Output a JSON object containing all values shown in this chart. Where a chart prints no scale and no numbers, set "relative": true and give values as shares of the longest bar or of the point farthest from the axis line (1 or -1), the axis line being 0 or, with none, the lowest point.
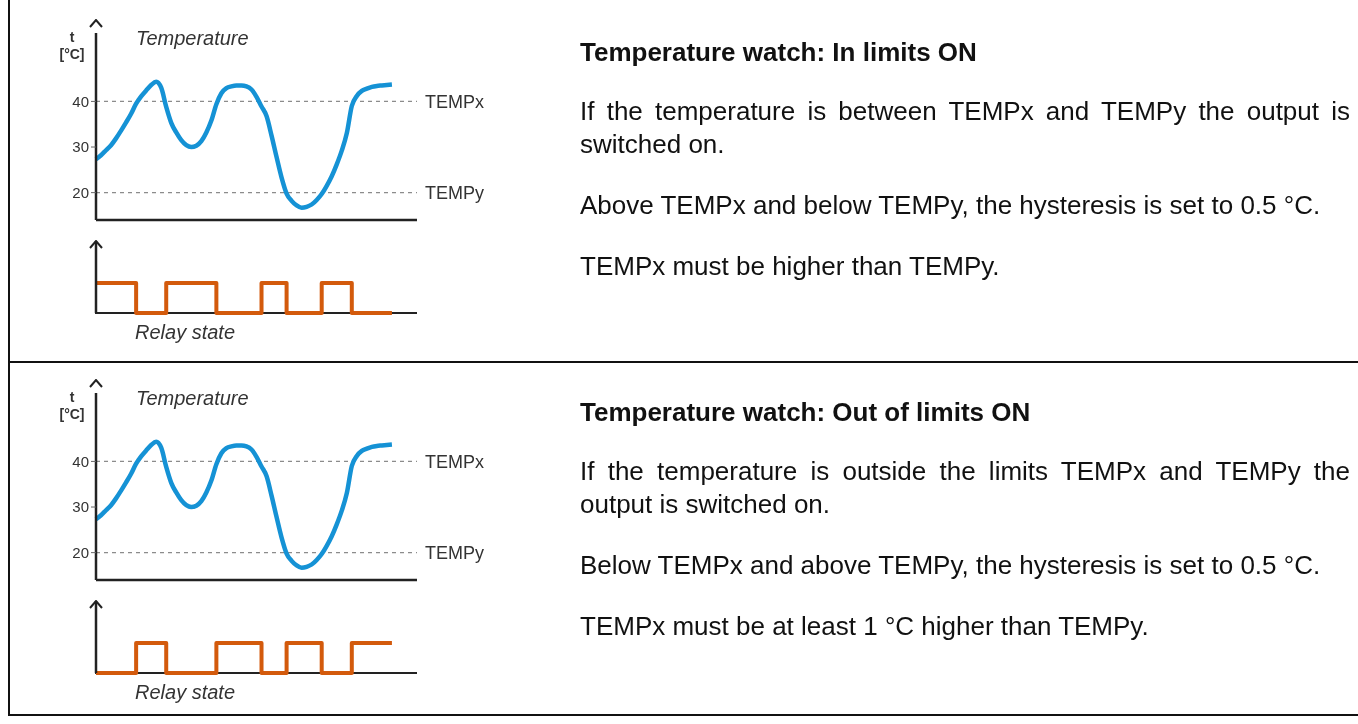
{
  "chart_data": [
    {
      "type": "line",
      "title": "Temperature",
      "ylabel": "t [°C]",
      "categories": [
        null,
        null,
        null,
        null,
        null,
        null,
        null,
        null,
        null,
        null,
        null,
        null,
        null,
        null,
        null,
        null,
        null,
        null,
        null,
        null,
        null,
        null,
        null,
        null,
        null,
        null,
        null,
        null,
        null,
        null,
        null,
        null,
        null,
        null,
        null,
        null,
        null,
        null,
        null,
        null,
        null,
        null,
        null,
        null,
        null,
        null,
        null,
        null,
        null,
        null,
        null,
        null,
        null,
        null,
        null,
        null,
        null,
        null,
        null,
        null
      ],
      "values": [
        27.3,
        28.2,
        29.3,
        30.4,
        31.9,
        33.6,
        35.4,
        37.3,
        39.5,
        41.1,
        42.4,
        43.6,
        44.3,
        43.0,
        38.8,
        35.3,
        33.2,
        31.5,
        30.4,
        30.0,
        30.3,
        31.3,
        33.2,
        35.8,
        39.4,
        41.8,
        42.9,
        43.3,
        43.5,
        43.5,
        43.3,
        42.6,
        41.0,
        38.9,
        36.8,
        32.5,
        27.8,
        23.3,
        19.8,
        18.2,
        17.2,
        16.7,
        16.9,
        17.4,
        18.4,
        19.7,
        21.5,
        23.6,
        26.2,
        29.2,
        33.0,
        39.0,
        41.2,
        42.3,
        42.8,
        43.2,
        43.4,
        43.5,
        43.6,
        43.7
      ],
      "color": "#1592d5",
      "line_style": "solid",
      "ylim": [
        14,
        55
      ],
      "yticks": [
        20,
        30,
        40
      ],
      "ref_lines": [
        {
          "axis": "y",
          "value": 40,
          "label": "TEMPx",
          "color": "#8c8c8c",
          "line_style": "dashed"
        },
        {
          "axis": "y",
          "value": 20,
          "label": "TEMPy",
          "color": "#8c8c8c",
          "line_style": "dashed"
        }
      ]
    },
    {
      "type": "step",
      "relative": true,
      "xlabel": "Relay state",
      "categories": [
        null,
        null,
        null,
        null,
        null,
        null,
        null,
        null,
        null,
        null,
        null,
        null,
        null,
        null,
        null,
        null,
        null,
        null,
        null,
        null,
        null,
        null,
        null,
        null,
        null,
        null,
        null,
        null,
        null,
        null,
        null,
        null,
        null,
        null,
        null,
        null,
        null,
        null,
        null,
        null,
        null,
        null,
        null,
        null,
        null,
        null,
        null,
        null,
        null,
        null,
        null,
        null,
        null,
        null,
        null,
        null,
        null,
        null,
        null,
        null
      ],
      "values": [
        1,
        1,
        1,
        1,
        1,
        1,
        1,
        1,
        0,
        0,
        0,
        0,
        0,
        0,
        1,
        1,
        1,
        1,
        1,
        1,
        1,
        1,
        1,
        1,
        0,
        0,
        0,
        0,
        0,
        0,
        0,
        0,
        0,
        1,
        1,
        1,
        1,
        1,
        0,
        0,
        0,
        0,
        0,
        0,
        0,
        1,
        1,
        1,
        1,
        1,
        1,
        0,
        0,
        0,
        0,
        0,
        0,
        0,
        0,
        0
      ],
      "color": "#d35a0c",
      "line_style": "solid"
    },
    {
      "type": "other",
      "title": "Temperature watch: In limits ON",
      "annotations": [
        "If the temperature is between TEMPx and TEMPy the output is switched on.",
        "Above TEMPx and below TEMPy, the hysteresis is set to 0.5 °C.",
        "TEMPx must be higher than TEMPy."
      ]
    },
    {
      "type": "line",
      "title": "Temperature",
      "ylabel": "t [°C]",
      "categories": [
        null,
        null,
        null,
        null,
        null,
        null,
        null,
        null,
        null,
        null,
        null,
        null,
        null,
        null,
        null,
        null,
        null,
        null,
        null,
        null,
        null,
        null,
        null,
        null,
        null,
        null,
        null,
        null,
        null,
        null,
        null,
        null,
        null,
        null,
        null,
        null,
        null,
        null,
        null,
        null,
        null,
        null,
        null,
        null,
        null,
        null,
        null,
        null,
        null,
        null,
        null,
        null,
        null,
        null,
        null,
        null,
        null,
        null,
        null,
        null
      ],
      "values": [
        27.3,
        28.2,
        29.3,
        30.4,
        31.9,
        33.6,
        35.4,
        37.3,
        39.5,
        41.1,
        42.4,
        43.6,
        44.3,
        43.0,
        38.8,
        35.3,
        33.2,
        31.5,
        30.4,
        30.0,
        30.3,
        31.3,
        33.2,
        35.8,
        39.4,
        41.8,
        42.9,
        43.3,
        43.5,
        43.5,
        43.3,
        42.6,
        41.0,
        38.9,
        36.8,
        32.5,
        27.8,
        23.3,
        19.8,
        18.2,
        17.2,
        16.7,
        16.9,
        17.4,
        18.4,
        19.7,
        21.5,
        23.6,
        26.2,
        29.2,
        33.0,
        39.0,
        41.2,
        42.3,
        42.8,
        43.2,
        43.4,
        43.5,
        43.6,
        43.7
      ],
      "color": "#1592d5",
      "line_style": "solid",
      "ylim": [
        14,
        55
      ],
      "yticks": [
        20,
        30,
        40
      ],
      "ref_lines": [
        {
          "axis": "y",
          "value": 40,
          "label": "TEMPx",
          "color": "#8c8c8c",
          "line_style": "dashed"
        },
        {
          "axis": "y",
          "value": 20,
          "label": "TEMPy",
          "color": "#8c8c8c",
          "line_style": "dashed"
        }
      ]
    },
    {
      "type": "step",
      "relative": true,
      "xlabel": "Relay state",
      "categories": [
        null,
        null,
        null,
        null,
        null,
        null,
        null,
        null,
        null,
        null,
        null,
        null,
        null,
        null,
        null,
        null,
        null,
        null,
        null,
        null,
        null,
        null,
        null,
        null,
        null,
        null,
        null,
        null,
        null,
        null,
        null,
        null,
        null,
        null,
        null,
        null,
        null,
        null,
        null,
        null,
        null,
        null,
        null,
        null,
        null,
        null,
        null,
        null,
        null,
        null,
        null,
        null,
        null,
        null,
        null,
        null,
        null,
        null,
        null,
        null
      ],
      "values": [
        0,
        0,
        0,
        0,
        0,
        0,
        0,
        0,
        1,
        1,
        1,
        1,
        1,
        1,
        0,
        0,
        0,
        0,
        0,
        0,
        0,
        0,
        0,
        0,
        1,
        1,
        1,
        1,
        1,
        1,
        1,
        1,
        1,
        0,
        0,
        0,
        0,
        0,
        1,
        1,
        1,
        1,
        1,
        1,
        1,
        0,
        0,
        0,
        0,
        0,
        0,
        1,
        1,
        1,
        1,
        1,
        1,
        1,
        1,
        1
      ],
      "color": "#d35a0c",
      "line_style": "solid"
    },
    {
      "type": "other",
      "title": "Temperature watch: Out of limits ON",
      "annotations": [
        "If the temperature is outside the limits TEMPx and TEMPy the output is switched on.",
        "Below TEMPx and above TEMPy, the hysteresis is set to 0.5 °C.",
        "TEMPx must be at least 1 °C higher than TEMPy."
      ]
    }
  ]
}
